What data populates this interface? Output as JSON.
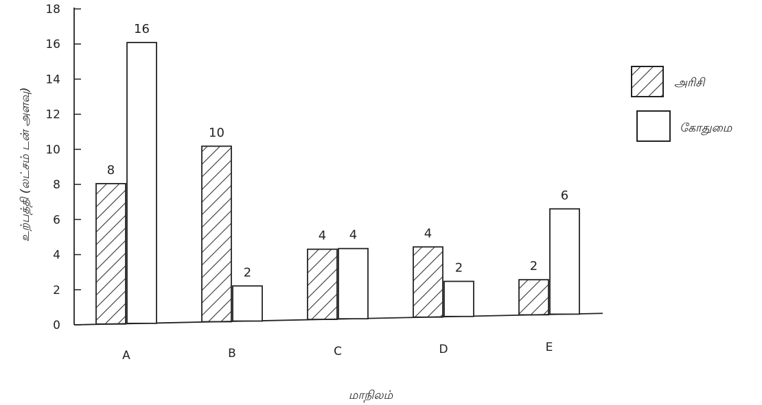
{
  "chart_data": {
    "type": "bar",
    "categories": [
      "A",
      "B",
      "C",
      "D",
      "E"
    ],
    "series": [
      {
        "name": "அரிசி",
        "values": [
          8,
          10,
          4,
          4,
          2
        ],
        "pattern": "hatched"
      },
      {
        "name": "கோதுமை",
        "values": [
          16,
          2,
          4,
          2,
          6
        ],
        "pattern": "plain"
      }
    ],
    "data_labels": [
      [
        "8",
        "10",
        "4",
        "4",
        "2"
      ],
      [
        "16",
        "2",
        "4",
        "2",
        "6"
      ]
    ],
    "title": "",
    "xlabel": "மாநிலம்",
    "ylabel": "உற்பத்தி (லட்சம் டன் அளவு)",
    "ylim": [
      0,
      18
    ],
    "yticks": [
      "0",
      "2",
      "4",
      "6",
      "8",
      "10",
      "12",
      "14",
      "16",
      "18"
    ],
    "grid": false,
    "legend": "right",
    "colors": {
      "bar_stroke": "#222222",
      "bar_fill": "#ffffff",
      "hatch": "#333333"
    }
  }
}
